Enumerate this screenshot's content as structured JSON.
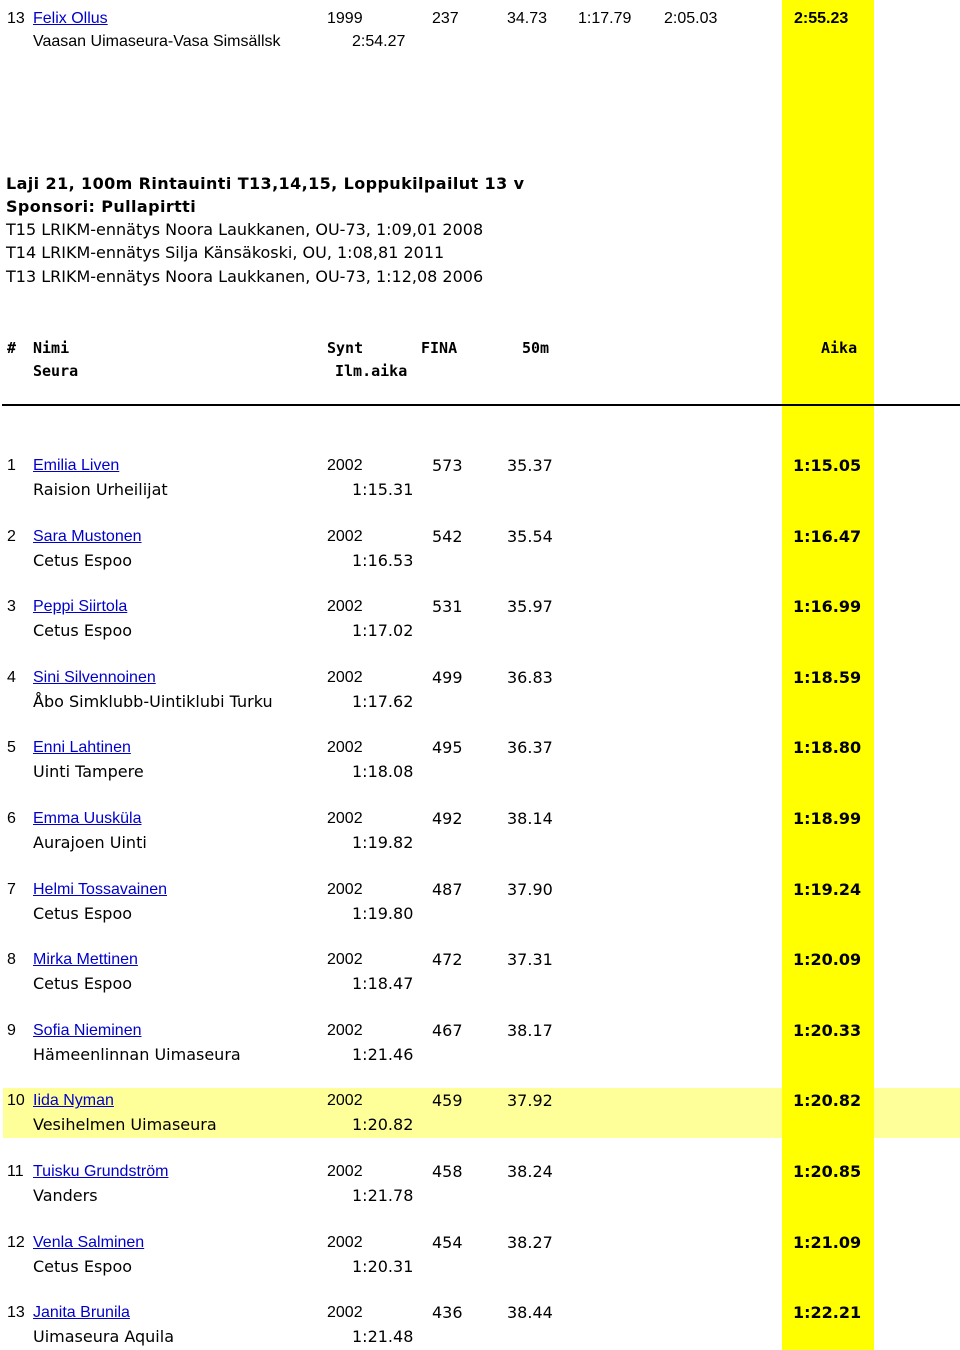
{
  "top_entry": {
    "place": "13",
    "name": "Felix Ollus",
    "year": "1999",
    "fina": "237",
    "split_50": "34.73",
    "split_100": "1:17.79",
    "split_150": "2:05.03",
    "time": "2:55.23",
    "club": "Vaasan Uimaseura-Vasa Simsällsk",
    "entry_time": "2:54.27"
  },
  "event": {
    "title": "Laji 21, 100m Rintauinti T13,14,15, Loppukilpailut 13 v",
    "sponsor": "Sponsori: Pullapirtti",
    "records": [
      "T15 LRIKM-ennätys Noora Laukkanen, OU-73, 1:09,01 2008",
      "T14 LRIKM-ennätys Silja Känsäkoski, OU, 1:08,81 2011",
      "T13 LRIKM-ennätys Noora Laukkanen, OU-73, 1:12,08 2006"
    ]
  },
  "header": {
    "place": "#",
    "name": "Nimi",
    "year": "Synt",
    "fina": "FINA",
    "split": "50m",
    "time": "Aika",
    "club": "Seura",
    "entry_time": "Ilm.aika"
  },
  "results": [
    {
      "place": "1",
      "name": "Emilia Liven",
      "year": "2002",
      "fina": "573",
      "split": "35.37",
      "time": "1:15.05",
      "club": "Raision Urheilijat",
      "entry_time": "1:15.31"
    },
    {
      "place": "2",
      "name": "Sara Mustonen",
      "year": "2002",
      "fina": "542",
      "split": "35.54",
      "time": "1:16.47",
      "club": "Cetus Espoo",
      "entry_time": "1:16.53"
    },
    {
      "place": "3",
      "name": "Peppi Siirtola",
      "year": "2002",
      "fina": "531",
      "split": "35.97",
      "time": "1:16.99",
      "club": "Cetus Espoo",
      "entry_time": "1:17.02"
    },
    {
      "place": "4",
      "name": "Sini Silvennoinen",
      "year": "2002",
      "fina": "499",
      "split": "36.83",
      "time": "1:18.59",
      "club": "Åbo Simklubb-Uintiklubi Turku",
      "entry_time": "1:17.62"
    },
    {
      "place": "5",
      "name": "Enni Lahtinen",
      "year": "2002",
      "fina": "495",
      "split": "36.37",
      "time": "1:18.80",
      "club": "Uinti Tampere",
      "entry_time": "1:18.08"
    },
    {
      "place": "6",
      "name": "Emma Uusküla",
      "year": "2002",
      "fina": "492",
      "split": "38.14",
      "time": "1:18.99",
      "club": "Aurajoen Uinti",
      "entry_time": "1:19.82"
    },
    {
      "place": "7",
      "name": "Helmi Tossavainen",
      "year": "2002",
      "fina": "487",
      "split": "37.90",
      "time": "1:19.24",
      "club": "Cetus Espoo",
      "entry_time": "1:19.80"
    },
    {
      "place": "8",
      "name": "Mirka Mettinen",
      "year": "2002",
      "fina": "472",
      "split": "37.31",
      "time": "1:20.09",
      "club": "Cetus Espoo",
      "entry_time": "1:18.47"
    },
    {
      "place": "9",
      "name": "Sofia Nieminen",
      "year": "2002",
      "fina": "467",
      "split": "38.17",
      "time": "1:20.33",
      "club": "Hämeenlinnan Uimaseura",
      "entry_time": "1:21.46"
    },
    {
      "place": "10",
      "name": "Iida Nyman",
      "year": "2002",
      "fina": "459",
      "split": "37.92",
      "time": "1:20.82",
      "club": "Vesihelmen Uimaseura",
      "entry_time": "1:20.82"
    },
    {
      "place": "11",
      "name": "Tuisku Grundström",
      "year": "2002",
      "fina": "458",
      "split": "38.24",
      "time": "1:20.85",
      "club": "Vanders",
      "entry_time": "1:21.78"
    },
    {
      "place": "12",
      "name": "Venla Salminen",
      "year": "2002",
      "fina": "454",
      "split": "38.27",
      "time": "1:21.09",
      "club": "Cetus Espoo",
      "entry_time": "1:20.31"
    },
    {
      "place": "13",
      "name": "Janita Brunila",
      "year": "2002",
      "fina": "436",
      "split": "38.44",
      "time": "1:22.21",
      "club": "Uimaseura Aquila",
      "entry_time": "1:21.48"
    }
  ],
  "colors": {
    "highlight_column": "#ffff00",
    "highlight_row": "#ffff99",
    "link": "#0000cc"
  }
}
